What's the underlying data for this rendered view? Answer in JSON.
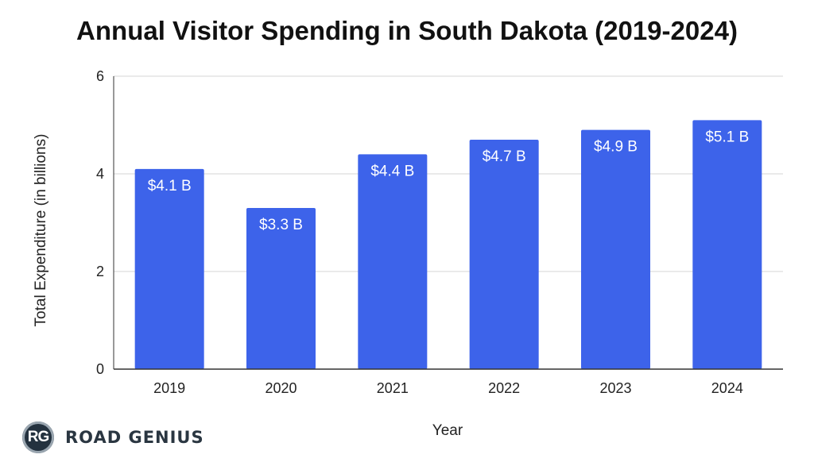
{
  "chart_data": {
    "type": "bar",
    "title": "Annual Visitor Spending in South Dakota (2019-2024)",
    "xlabel": "Year",
    "ylabel": "Total Expenditure (in billions)",
    "categories": [
      "2019",
      "2020",
      "2021",
      "2022",
      "2023",
      "2024"
    ],
    "values": [
      4.1,
      3.3,
      4.4,
      4.7,
      4.9,
      5.1
    ],
    "data_labels": [
      "$4.1 B",
      "$3.3 B",
      "$4.4 B",
      "$4.7 B",
      "$4.9 B",
      "$5.1 B"
    ],
    "ylim": [
      0,
      6
    ],
    "yticks": [
      0,
      2,
      4,
      6
    ],
    "grid": true,
    "bar_color": "#3d63ea"
  },
  "branding": {
    "badge": "RG",
    "name": "ROAD GENIUS"
  }
}
